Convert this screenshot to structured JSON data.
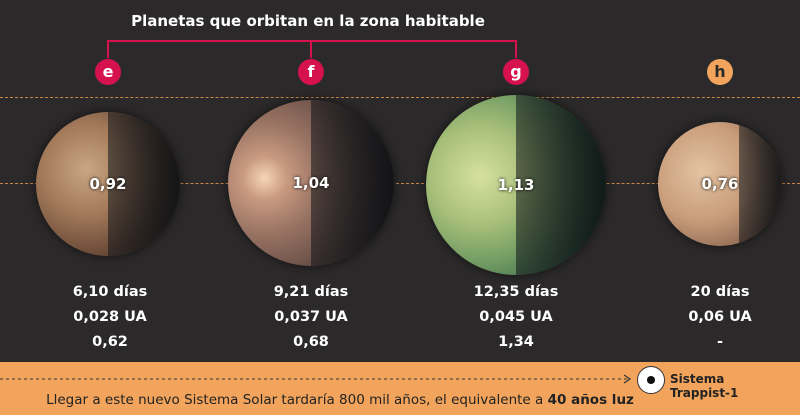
{
  "title": "Planetas que orbitan en la zona habitable",
  "colors": {
    "habitable_badge": "#d6124e",
    "other_badge": "#f2a45c",
    "bracket": "#d6124e",
    "footer": "#f2a45c"
  },
  "planets": [
    {
      "letter": "e",
      "radius_value": "0,92",
      "period": "6,10 días",
      "distance": "0,028 UA",
      "third_value": "0,62",
      "habitable": true
    },
    {
      "letter": "f",
      "radius_value": "1,04",
      "period": "9,21 días",
      "distance": "0,037 UA",
      "third_value": "0,68",
      "habitable": true
    },
    {
      "letter": "g",
      "radius_value": "1,13",
      "period": "12,35 días",
      "distance": "0,045 UA",
      "third_value": "1,34",
      "habitable": true
    },
    {
      "letter": "h",
      "radius_value": "0,76",
      "period": "20 días",
      "distance": "0,06 UA",
      "third_value": "-",
      "habitable": false
    }
  ],
  "footer": {
    "text": "Llegar a este nuevo Sistema Solar tardaría 800 mil años, el equivalente a ",
    "bold": "40 años luz",
    "system_label_line1": "Sistema",
    "system_label_line2": "Trappist-1"
  }
}
